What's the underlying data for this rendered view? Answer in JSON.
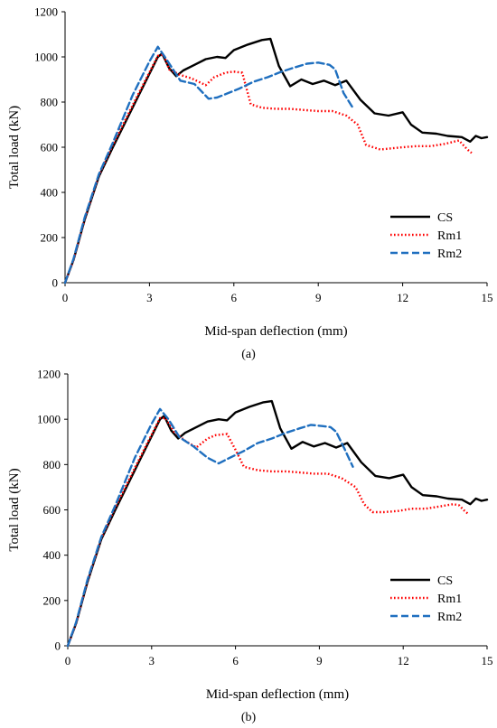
{
  "chart_data": [
    {
      "type": "line",
      "caption": "(a)",
      "xlabel": "Mid-span deflection (mm)",
      "ylabel": "Total load (kN)",
      "xlim": [
        0,
        15
      ],
      "ylim": [
        0,
        1200
      ],
      "xticks": [
        "0",
        "3",
        "6",
        "9",
        "12",
        "15"
      ],
      "yticks": [
        "0",
        "200",
        "400",
        "600",
        "800",
        "1000",
        "1200"
      ],
      "grid": false,
      "legend_position": "bottom-right",
      "series": [
        {
          "name": "CS",
          "color": "#000000",
          "dash": "solid",
          "points": [
            [
              0,
              0
            ],
            [
              0.3,
              100
            ],
            [
              0.7,
              280
            ],
            [
              1.2,
              470
            ],
            [
              1.7,
              600
            ],
            [
              2.5,
              800
            ],
            [
              3.3,
              1000
            ],
            [
              3.45,
              1015
            ],
            [
              3.7,
              950
            ],
            [
              3.95,
              915
            ],
            [
              4.2,
              940
            ],
            [
              4.6,
              965
            ],
            [
              5.0,
              990
            ],
            [
              5.4,
              1000
            ],
            [
              5.7,
              995
            ],
            [
              6.0,
              1030
            ],
            [
              6.5,
              1055
            ],
            [
              7.0,
              1075
            ],
            [
              7.3,
              1080
            ],
            [
              7.6,
              960
            ],
            [
              8.0,
              870
            ],
            [
              8.4,
              900
            ],
            [
              8.8,
              880
            ],
            [
              9.2,
              895
            ],
            [
              9.6,
              875
            ],
            [
              10.0,
              895
            ],
            [
              10.5,
              810
            ],
            [
              11.0,
              750
            ],
            [
              11.5,
              740
            ],
            [
              12.0,
              755
            ],
            [
              12.3,
              700
            ],
            [
              12.7,
              665
            ],
            [
              13.2,
              660
            ],
            [
              13.6,
              650
            ],
            [
              14.1,
              645
            ],
            [
              14.4,
              625
            ],
            [
              14.6,
              650
            ],
            [
              14.8,
              640
            ],
            [
              15.0,
              645
            ]
          ]
        },
        {
          "name": "Rm1",
          "color": "#ff0000",
          "dash": "dotted",
          "points": [
            [
              0,
              0
            ],
            [
              0.3,
              100
            ],
            [
              0.7,
              285
            ],
            [
              1.2,
              475
            ],
            [
              1.7,
              610
            ],
            [
              2.5,
              810
            ],
            [
              3.3,
              1005
            ],
            [
              3.5,
              1010
            ],
            [
              3.7,
              945
            ],
            [
              4.1,
              920
            ],
            [
              4.5,
              905
            ],
            [
              5.0,
              875
            ],
            [
              5.3,
              910
            ],
            [
              5.7,
              930
            ],
            [
              6.0,
              935
            ],
            [
              6.3,
              930
            ],
            [
              6.6,
              790
            ],
            [
              7.0,
              775
            ],
            [
              7.5,
              770
            ],
            [
              8.0,
              770
            ],
            [
              8.5,
              765
            ],
            [
              9.0,
              760
            ],
            [
              9.5,
              760
            ],
            [
              10.0,
              740
            ],
            [
              10.4,
              700
            ],
            [
              10.7,
              610
            ],
            [
              11.2,
              590
            ],
            [
              11.6,
              595
            ],
            [
              12.0,
              600
            ],
            [
              12.5,
              605
            ],
            [
              13.0,
              605
            ],
            [
              13.5,
              615
            ],
            [
              14.0,
              630
            ],
            [
              14.3,
              590
            ],
            [
              14.45,
              575
            ]
          ]
        },
        {
          "name": "Rm2",
          "color": "#1f6fbf",
          "dash": "dashed",
          "points": [
            [
              0,
              0
            ],
            [
              0.3,
              105
            ],
            [
              0.7,
              290
            ],
            [
              1.2,
              480
            ],
            [
              1.7,
              620
            ],
            [
              2.4,
              830
            ],
            [
              3.0,
              980
            ],
            [
              3.3,
              1045
            ],
            [
              3.6,
              990
            ],
            [
              4.1,
              895
            ],
            [
              4.6,
              880
            ],
            [
              5.1,
              815
            ],
            [
              5.4,
              820
            ],
            [
              5.8,
              840
            ],
            [
              6.2,
              860
            ],
            [
              6.7,
              890
            ],
            [
              7.2,
              910
            ],
            [
              7.7,
              935
            ],
            [
              8.2,
              955
            ],
            [
              8.6,
              970
            ],
            [
              9.0,
              975
            ],
            [
              9.4,
              965
            ],
            [
              9.6,
              945
            ],
            [
              9.9,
              840
            ],
            [
              10.2,
              780
            ]
          ]
        }
      ]
    },
    {
      "type": "line",
      "caption": "(b)",
      "xlabel": "Mid-span deflection (mm)",
      "ylabel": "Total load (kN)",
      "xlim": [
        0,
        15
      ],
      "ylim": [
        0,
        1200
      ],
      "xticks": [
        "0",
        "3",
        "6",
        "9",
        "12",
        "15"
      ],
      "yticks": [
        "0",
        "200",
        "400",
        "600",
        "800",
        "1000",
        "1200"
      ],
      "grid": false,
      "legend_position": "bottom-right",
      "series": [
        {
          "name": "CS",
          "color": "#000000",
          "dash": "solid",
          "points": [
            [
              0,
              0
            ],
            [
              0.3,
              100
            ],
            [
              0.7,
              280
            ],
            [
              1.2,
              470
            ],
            [
              1.7,
              600
            ],
            [
              2.5,
              800
            ],
            [
              3.3,
              1000
            ],
            [
              3.45,
              1015
            ],
            [
              3.7,
              950
            ],
            [
              3.95,
              915
            ],
            [
              4.2,
              940
            ],
            [
              4.6,
              965
            ],
            [
              5.0,
              990
            ],
            [
              5.4,
              1000
            ],
            [
              5.7,
              995
            ],
            [
              6.0,
              1030
            ],
            [
              6.5,
              1055
            ],
            [
              7.0,
              1075
            ],
            [
              7.3,
              1080
            ],
            [
              7.6,
              960
            ],
            [
              8.0,
              870
            ],
            [
              8.4,
              900
            ],
            [
              8.8,
              880
            ],
            [
              9.2,
              895
            ],
            [
              9.6,
              875
            ],
            [
              10.0,
              895
            ],
            [
              10.5,
              810
            ],
            [
              11.0,
              750
            ],
            [
              11.5,
              740
            ],
            [
              12.0,
              755
            ],
            [
              12.3,
              700
            ],
            [
              12.7,
              665
            ],
            [
              13.2,
              660
            ],
            [
              13.6,
              650
            ],
            [
              14.1,
              645
            ],
            [
              14.4,
              625
            ],
            [
              14.6,
              650
            ],
            [
              14.8,
              640
            ],
            [
              15.0,
              645
            ]
          ]
        },
        {
          "name": "Rm1",
          "color": "#ff0000",
          "dash": "dotted",
          "points": [
            [
              0,
              0
            ],
            [
              0.3,
              100
            ],
            [
              0.7,
              285
            ],
            [
              1.2,
              475
            ],
            [
              1.7,
              610
            ],
            [
              2.5,
              810
            ],
            [
              3.3,
              1005
            ],
            [
              3.5,
              1005
            ],
            [
              3.8,
              945
            ],
            [
              4.2,
              905
            ],
            [
              4.6,
              875
            ],
            [
              5.0,
              915
            ],
            [
              5.3,
              930
            ],
            [
              5.7,
              935
            ],
            [
              6.0,
              865
            ],
            [
              6.3,
              790
            ],
            [
              6.8,
              775
            ],
            [
              7.3,
              770
            ],
            [
              7.8,
              770
            ],
            [
              8.3,
              765
            ],
            [
              8.8,
              760
            ],
            [
              9.3,
              760
            ],
            [
              9.8,
              740
            ],
            [
              10.3,
              700
            ],
            [
              10.6,
              625
            ],
            [
              10.9,
              590
            ],
            [
              11.3,
              590
            ],
            [
              11.8,
              595
            ],
            [
              12.3,
              605
            ],
            [
              12.8,
              605
            ],
            [
              13.3,
              615
            ],
            [
              13.8,
              625
            ],
            [
              14.0,
              620
            ],
            [
              14.2,
              595
            ],
            [
              14.35,
              580
            ]
          ]
        },
        {
          "name": "Rm2",
          "color": "#1f6fbf",
          "dash": "dashed",
          "points": [
            [
              0,
              0
            ],
            [
              0.3,
              105
            ],
            [
              0.7,
              290
            ],
            [
              1.2,
              480
            ],
            [
              1.7,
              620
            ],
            [
              2.4,
              830
            ],
            [
              3.0,
              980
            ],
            [
              3.3,
              1045
            ],
            [
              3.6,
              1000
            ],
            [
              4.0,
              920
            ],
            [
              4.5,
              880
            ],
            [
              5.0,
              830
            ],
            [
              5.4,
              805
            ],
            [
              5.8,
              830
            ],
            [
              6.3,
              860
            ],
            [
              6.8,
              895
            ],
            [
              7.3,
              915
            ],
            [
              7.8,
              940
            ],
            [
              8.3,
              960
            ],
            [
              8.7,
              975
            ],
            [
              9.1,
              970
            ],
            [
              9.4,
              965
            ],
            [
              9.6,
              945
            ],
            [
              9.9,
              870
            ],
            [
              10.2,
              790
            ]
          ]
        }
      ]
    }
  ]
}
